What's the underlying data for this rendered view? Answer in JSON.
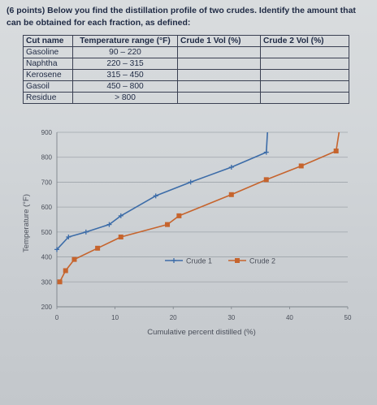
{
  "question": {
    "text": "(6 points) Below you find the distillation profile of two crudes. Identify the amount that can be obtained for each fraction, as defined:"
  },
  "table": {
    "headers": [
      "Cut name",
      "Temperature range (°F)",
      "Crude 1 Vol (%)",
      "Crude 2 Vol (%)"
    ],
    "rows": [
      {
        "name": "Gasoline",
        "range": "90 – 220",
        "crude1": "",
        "crude2": ""
      },
      {
        "name": "Naphtha",
        "range": "220 – 315",
        "crude1": "",
        "crude2": ""
      },
      {
        "name": "Kerosene",
        "range": "315 – 450",
        "crude1": "",
        "crude2": ""
      },
      {
        "name": "Gasoil",
        "range": "450 – 800",
        "crude1": "",
        "crude2": ""
      },
      {
        "name": "Residue",
        "range": "> 800",
        "crude1": "",
        "crude2": ""
      }
    ]
  },
  "chart_data": {
    "type": "line",
    "xlabel": "Cumulative percent distilled (%)",
    "ylabel": "Temperature (°F)",
    "xlim": [
      0,
      50
    ],
    "ylim": [
      200,
      900
    ],
    "xticks": [
      "0",
      "10",
      "20",
      "30",
      "40",
      "50"
    ],
    "yticks": [
      "200",
      "300",
      "400",
      "500",
      "600",
      "700",
      "800",
      "900"
    ],
    "grid": "horizontal",
    "legend": "center-right",
    "series": [
      {
        "name": "Crude 1",
        "color": "#3c6ca8",
        "marker": "cross",
        "points": [
          [
            0,
            430
          ],
          [
            2,
            480
          ],
          [
            5,
            500
          ],
          [
            9,
            530
          ],
          [
            11,
            565
          ],
          [
            17,
            645
          ],
          [
            23,
            700
          ],
          [
            30,
            760
          ],
          [
            36,
            820
          ],
          [
            36.2,
            900
          ]
        ]
      },
      {
        "name": "Crude 2",
        "color": "#c6642d",
        "marker": "square",
        "points": [
          [
            0.5,
            300
          ],
          [
            1.5,
            345
          ],
          [
            3,
            390
          ],
          [
            7,
            435
          ],
          [
            11,
            480
          ],
          [
            19,
            530
          ],
          [
            21,
            565
          ],
          [
            30,
            650
          ],
          [
            36,
            710
          ],
          [
            42,
            765
          ],
          [
            48,
            825
          ],
          [
            48.5,
            900
          ]
        ]
      }
    ]
  }
}
